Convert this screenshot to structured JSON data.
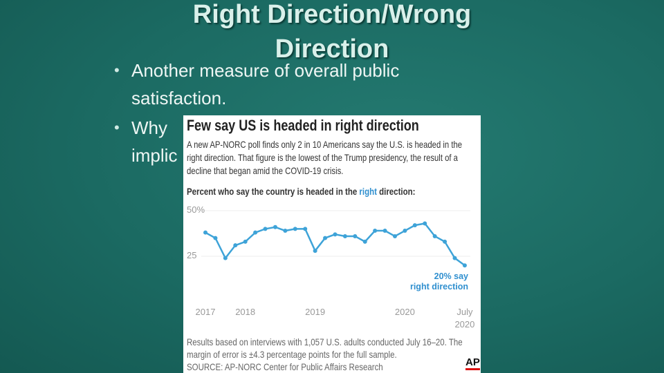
{
  "slide": {
    "title": "Right Direction/Wrong Direction",
    "bullets": [
      [
        "Another measure of overall public satisfaction."
      ],
      [
        "Why",
        "implic"
      ]
    ]
  },
  "chart_data": {
    "type": "line",
    "title": "Few say US is headed in right direction",
    "subtitle": "A new AP-NORC poll finds only 2 in 10 Americans say the U.S. is headed in the right direction. That figure is the lowest of the Trump presidency, the result of a decline that began amid the COVID-19 crisis.",
    "axis_title_parts": [
      "Percent who say the country is headed in the ",
      "right",
      " direction:"
    ],
    "categories": [
      "2017",
      null,
      null,
      null,
      "2018",
      null,
      null,
      null,
      null,
      null,
      null,
      "2019",
      null,
      null,
      null,
      null,
      null,
      null,
      null,
      null,
      "2020",
      null,
      null,
      null,
      null,
      null,
      "July\n2020"
    ],
    "values": [
      38,
      35,
      24,
      31,
      33,
      38,
      40,
      41,
      39,
      40,
      40,
      28,
      35,
      37,
      36,
      36,
      33,
      39,
      39,
      36,
      39,
      42,
      43,
      36,
      33,
      24,
      20
    ],
    "color": "#3ea3d8",
    "ylim": [
      0,
      50
    ],
    "yticks": [
      25,
      {
        "value": 50,
        "label": "50%"
      }
    ],
    "grid": true,
    "annotation": "20% say\nright direction",
    "footnote": "Results based on interviews with 1,057 U.S. adults conducted July 16–20. The margin of error is ±4.3 percentage points for the full sample.",
    "source": "SOURCE: AP-NORC Center for Public Affairs Research",
    "logo": "AP"
  }
}
